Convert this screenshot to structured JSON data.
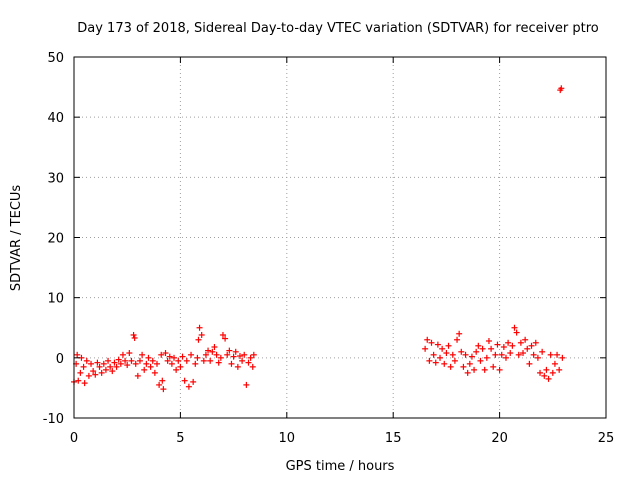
{
  "chart_data": {
    "type": "scatter",
    "title": "Day 173 of 2018, Sidereal Day-to-day VTEC variation (SDTVAR) for receiver ptro",
    "xlabel": "GPS time / hours",
    "ylabel": "SDTVAR / TECUs",
    "xlim": [
      0,
      25
    ],
    "ylim": [
      -10,
      50
    ],
    "x_ticks": [
      "0",
      "5",
      "10",
      "15",
      "20",
      "25"
    ],
    "y_ticks": [
      "-10",
      "0",
      "10",
      "20",
      "30",
      "40",
      "50"
    ],
    "grid": true,
    "marker": "+",
    "marker_color": "#ff0000",
    "series": [
      {
        "name": "SDTVAR",
        "points": [
          [
            0.0,
            -4.0
          ],
          [
            0.1,
            -1.0
          ],
          [
            0.15,
            0.5
          ],
          [
            0.2,
            -3.8
          ],
          [
            0.3,
            -2.5
          ],
          [
            0.35,
            0.0
          ],
          [
            0.45,
            -1.5
          ],
          [
            0.5,
            -4.2
          ],
          [
            0.6,
            -0.5
          ],
          [
            0.7,
            -3.0
          ],
          [
            0.8,
            -1.0
          ],
          [
            0.9,
            -2.2
          ],
          [
            1.0,
            -2.8
          ],
          [
            1.1,
            -0.8
          ],
          [
            1.2,
            -1.5
          ],
          [
            1.3,
            -2.5
          ],
          [
            1.4,
            -1.0
          ],
          [
            1.5,
            -2.0
          ],
          [
            1.6,
            -0.5
          ],
          [
            1.7,
            -1.5
          ],
          [
            1.8,
            -2.2
          ],
          [
            1.9,
            -0.8
          ],
          [
            2.0,
            -1.5
          ],
          [
            2.1,
            -0.3
          ],
          [
            2.2,
            -1.0
          ],
          [
            2.3,
            0.5
          ],
          [
            2.4,
            -0.5
          ],
          [
            2.5,
            -1.2
          ],
          [
            2.6,
            0.8
          ],
          [
            2.7,
            -0.5
          ],
          [
            2.8,
            3.8
          ],
          [
            2.85,
            3.3
          ],
          [
            2.9,
            -1.0
          ],
          [
            3.0,
            -3.0
          ],
          [
            3.1,
            -0.5
          ],
          [
            3.2,
            0.5
          ],
          [
            3.3,
            -2.0
          ],
          [
            3.4,
            -1.0
          ],
          [
            3.5,
            0.0
          ],
          [
            3.6,
            -1.5
          ],
          [
            3.7,
            -0.5
          ],
          [
            3.8,
            -2.5
          ],
          [
            3.9,
            -1.0
          ],
          [
            4.0,
            -4.5
          ],
          [
            4.1,
            0.5
          ],
          [
            4.15,
            -3.8
          ],
          [
            4.2,
            -5.2
          ],
          [
            4.3,
            0.8
          ],
          [
            4.4,
            -0.5
          ],
          [
            4.5,
            0.2
          ],
          [
            4.6,
            -1.0
          ],
          [
            4.7,
            0.0
          ],
          [
            4.8,
            -2.0
          ],
          [
            4.9,
            -0.5
          ],
          [
            5.0,
            -1.5
          ],
          [
            5.1,
            0.2
          ],
          [
            5.2,
            -3.8
          ],
          [
            5.3,
            -0.5
          ],
          [
            5.4,
            -4.8
          ],
          [
            5.5,
            0.5
          ],
          [
            5.6,
            -4.0
          ],
          [
            5.7,
            -1.0
          ],
          [
            5.8,
            0.0
          ],
          [
            5.85,
            3.0
          ],
          [
            5.9,
            5.0
          ],
          [
            6.0,
            3.8
          ],
          [
            6.1,
            -0.5
          ],
          [
            6.2,
            0.5
          ],
          [
            6.3,
            1.2
          ],
          [
            6.4,
            -0.5
          ],
          [
            6.5,
            1.0
          ],
          [
            6.6,
            1.8
          ],
          [
            6.7,
            0.5
          ],
          [
            6.8,
            -0.8
          ],
          [
            6.9,
            0.0
          ],
          [
            7.0,
            3.8
          ],
          [
            7.1,
            3.2
          ],
          [
            7.2,
            0.5
          ],
          [
            7.3,
            1.2
          ],
          [
            7.4,
            -1.0
          ],
          [
            7.5,
            0.2
          ],
          [
            7.6,
            1.0
          ],
          [
            7.7,
            -1.5
          ],
          [
            7.8,
            0.3
          ],
          [
            7.9,
            -0.5
          ],
          [
            8.0,
            0.5
          ],
          [
            8.1,
            -4.5
          ],
          [
            8.2,
            -0.8
          ],
          [
            8.3,
            0.0
          ],
          [
            8.4,
            -1.5
          ],
          [
            8.45,
            0.5
          ],
          [
            16.5,
            1.5
          ],
          [
            16.6,
            3.0
          ],
          [
            16.7,
            -0.5
          ],
          [
            16.8,
            2.5
          ],
          [
            16.9,
            0.5
          ],
          [
            17.0,
            -0.8
          ],
          [
            17.1,
            2.2
          ],
          [
            17.2,
            0.0
          ],
          [
            17.3,
            1.5
          ],
          [
            17.4,
            -1.0
          ],
          [
            17.5,
            0.8
          ],
          [
            17.6,
            2.0
          ],
          [
            17.7,
            -1.5
          ],
          [
            17.8,
            0.5
          ],
          [
            17.9,
            -0.5
          ],
          [
            18.0,
            3.0
          ],
          [
            18.1,
            4.0
          ],
          [
            18.2,
            1.0
          ],
          [
            18.3,
            -1.5
          ],
          [
            18.4,
            0.5
          ],
          [
            18.5,
            -2.5
          ],
          [
            18.6,
            -1.0
          ],
          [
            18.7,
            0.2
          ],
          [
            18.8,
            -2.0
          ],
          [
            18.9,
            1.0
          ],
          [
            19.0,
            2.0
          ],
          [
            19.1,
            -0.5
          ],
          [
            19.2,
            1.5
          ],
          [
            19.3,
            -2.0
          ],
          [
            19.4,
            0.0
          ],
          [
            19.5,
            2.8
          ],
          [
            19.6,
            1.5
          ],
          [
            19.7,
            -1.5
          ],
          [
            19.8,
            0.5
          ],
          [
            19.9,
            2.2
          ],
          [
            20.0,
            -2.0
          ],
          [
            20.1,
            0.5
          ],
          [
            20.2,
            1.8
          ],
          [
            20.3,
            0.0
          ],
          [
            20.4,
            2.5
          ],
          [
            20.5,
            0.8
          ],
          [
            20.6,
            2.0
          ],
          [
            20.7,
            5.0
          ],
          [
            20.8,
            4.2
          ],
          [
            20.9,
            0.5
          ],
          [
            21.0,
            2.5
          ],
          [
            21.1,
            0.8
          ],
          [
            21.2,
            3.0
          ],
          [
            21.3,
            1.5
          ],
          [
            21.4,
            -1.0
          ],
          [
            21.5,
            2.0
          ],
          [
            21.6,
            0.5
          ],
          [
            21.7,
            2.5
          ],
          [
            21.8,
            0.0
          ],
          [
            21.9,
            -2.5
          ],
          [
            22.0,
            1.0
          ],
          [
            22.1,
            -3.0
          ],
          [
            22.2,
            -2.0
          ],
          [
            22.3,
            -3.5
          ],
          [
            22.4,
            0.5
          ],
          [
            22.5,
            -2.5
          ],
          [
            22.6,
            -1.0
          ],
          [
            22.7,
            0.5
          ],
          [
            22.8,
            -2.0
          ],
          [
            22.85,
            44.5
          ],
          [
            22.9,
            44.8
          ],
          [
            22.95,
            0.0
          ]
        ]
      }
    ]
  }
}
